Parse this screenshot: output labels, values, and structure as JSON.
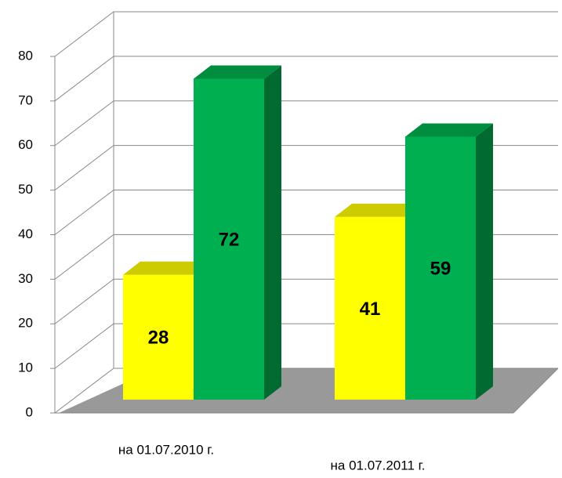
{
  "chart_data": {
    "type": "bar3d",
    "categories": [
      "на 01.07.2010  г.",
      "на 01.07.2011 г."
    ],
    "series": [
      {
        "color": "#ffff00",
        "values": [
          28,
          41
        ]
      },
      {
        "color": "#00b050",
        "values": [
          72,
          59
        ]
      }
    ],
    "ylim": [
      0,
      80
    ],
    "yticks": [
      0,
      10,
      20,
      30,
      40,
      50,
      60,
      70,
      80
    ],
    "grid": true
  }
}
